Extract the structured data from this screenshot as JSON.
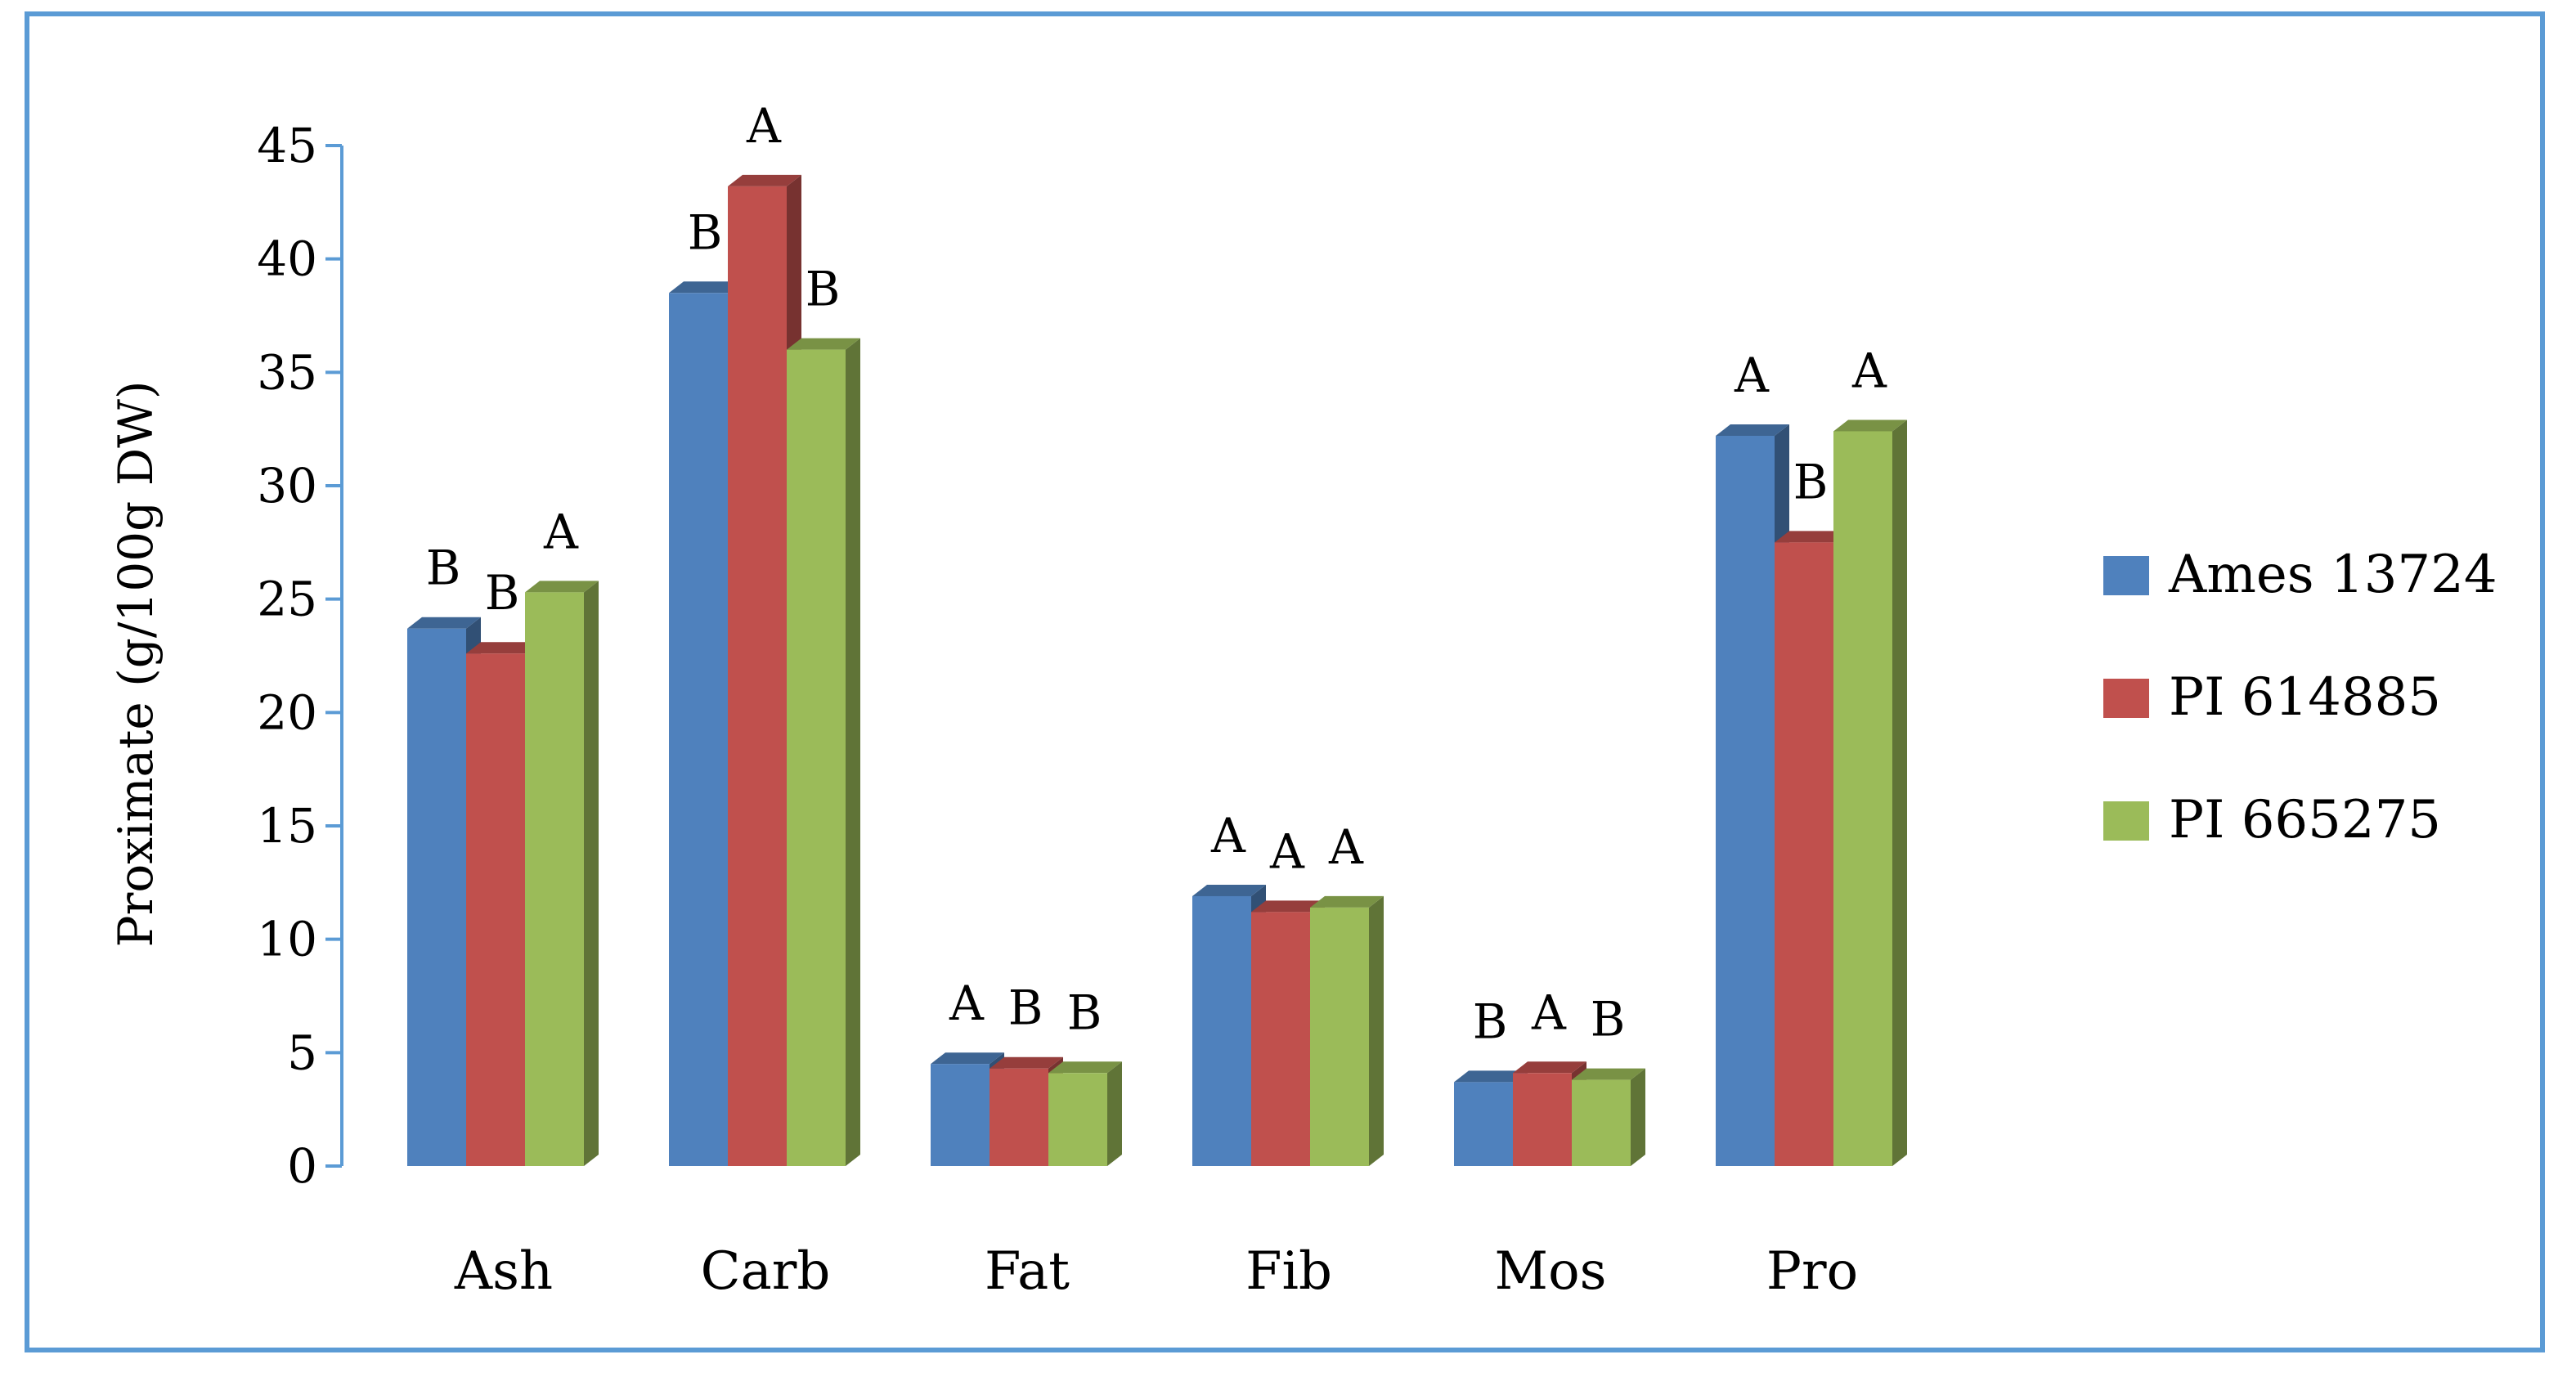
{
  "chart_data": {
    "type": "bar",
    "title": "",
    "xlabel": "",
    "ylabel": "Proximate (g/100g DW)",
    "ylim": [
      0,
      45
    ],
    "yticks": [
      0,
      5,
      10,
      15,
      20,
      25,
      30,
      35,
      40,
      45
    ],
    "grid": false,
    "legend_position": "right",
    "categories": [
      "Ash",
      "Carb",
      "Fat",
      "Fib",
      "Mos",
      "Pro"
    ],
    "series": [
      {
        "name": "Ames 13724",
        "color": "#4f81bd",
        "values": [
          23.7,
          38.5,
          4.5,
          11.9,
          3.7,
          32.2
        ],
        "letters": [
          "B",
          "B",
          "A",
          "A",
          "B",
          "A"
        ]
      },
      {
        "name": "PI 614885",
        "color": "#c0504d",
        "values": [
          22.6,
          43.2,
          4.3,
          11.2,
          4.1,
          27.5
        ],
        "letters": [
          "B",
          "A",
          "B",
          "A",
          "A",
          "B"
        ]
      },
      {
        "name": "PI 665275",
        "color": "#9bbb59",
        "values": [
          25.3,
          36.0,
          4.1,
          11.4,
          3.8,
          32.4
        ],
        "letters": [
          "A",
          "B",
          "B",
          "A",
          "B",
          "A"
        ]
      }
    ]
  }
}
